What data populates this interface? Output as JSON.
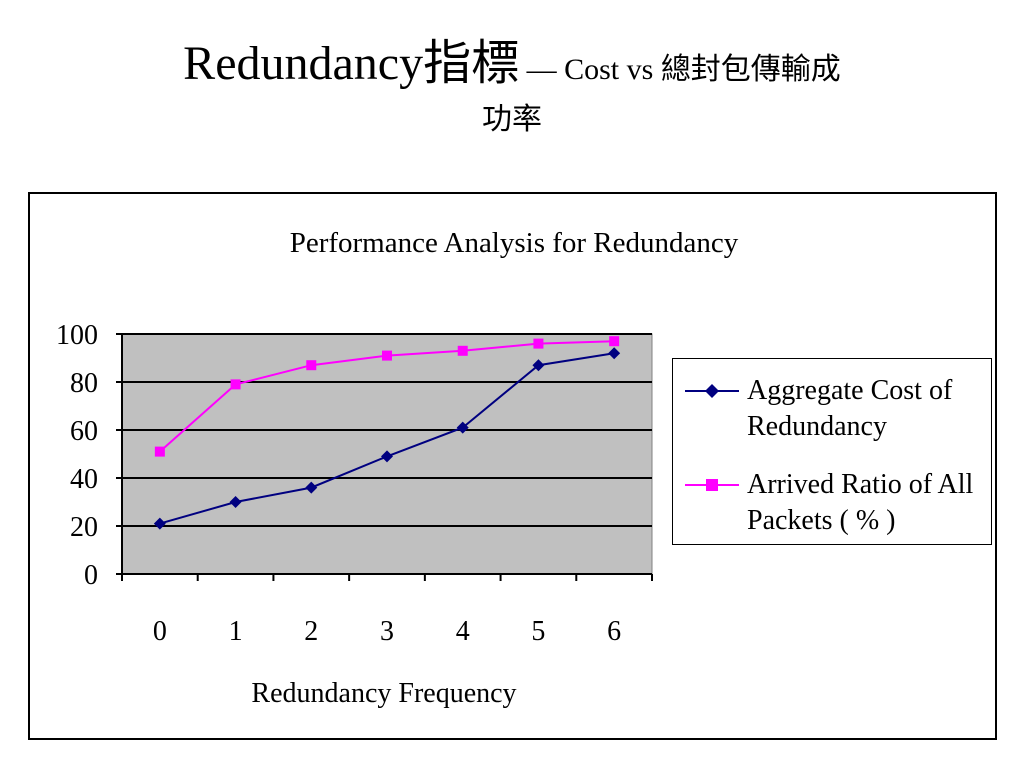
{
  "slide": {
    "title_main": "Redundancy指標",
    "title_dash": " — Cost vs ",
    "title_tail": "總封包傳輸成",
    "title_line2": "功率"
  },
  "chart_data": {
    "type": "line",
    "title": "Performance Analysis for Redundancy",
    "xlabel": "Redundancy Frequency",
    "ylabel": "",
    "categories": [
      "0",
      "1",
      "2",
      "3",
      "4",
      "5",
      "6"
    ],
    "ylim": [
      0,
      100
    ],
    "yticks": [
      0,
      20,
      40,
      60,
      80,
      100
    ],
    "grid": true,
    "legend_position": "right",
    "plot_background": "#c0c0c0",
    "series": [
      {
        "name": "Aggregate Cost of Redundancy",
        "legend_lines": [
          "Aggregate Cost of",
          "Redundancy"
        ],
        "values": [
          21,
          30,
          36,
          49,
          61,
          87,
          92
        ],
        "color": "#000080",
        "marker": "diamond"
      },
      {
        "name": "Arrived Ratio of All Packets ( % )",
        "legend_lines": [
          "Arrived Ratio of All",
          "Packets ( % )"
        ],
        "values": [
          51,
          79,
          87,
          91,
          93,
          96,
          97
        ],
        "color": "#ff00ff",
        "marker": "square"
      }
    ]
  }
}
